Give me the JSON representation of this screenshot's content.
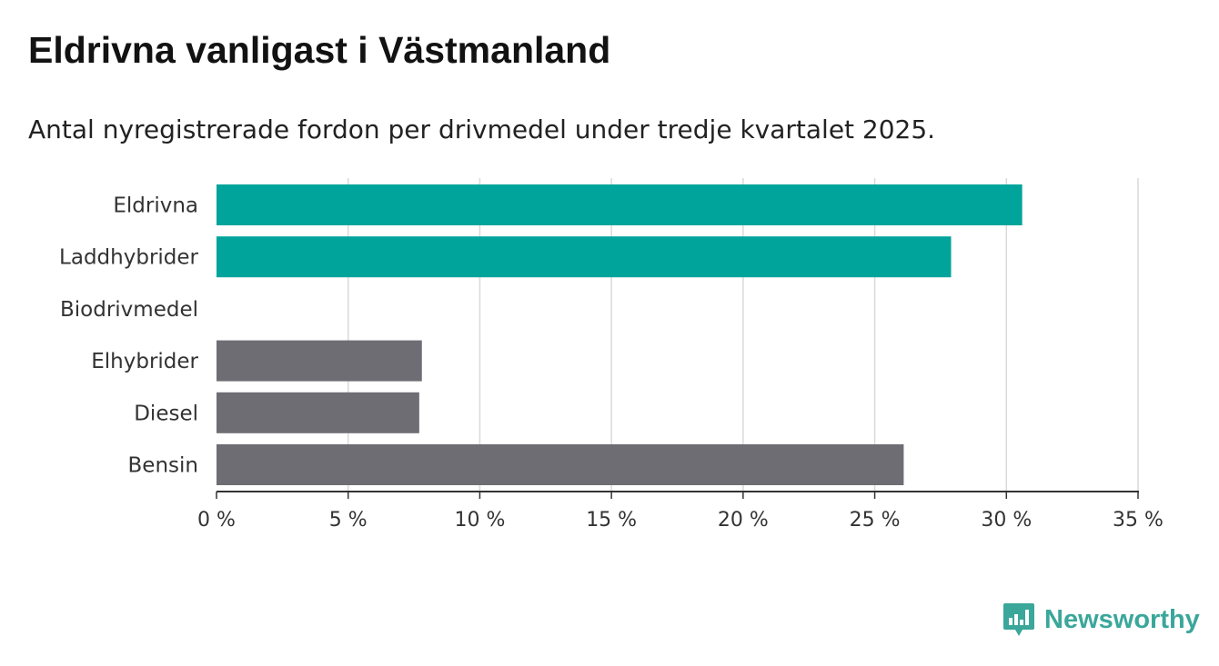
{
  "title": "Eldrivna vanligast i Västmanland",
  "subtitle": "Antal nyregistrerade fordon per drivmedel under tredje kvartalet 2025.",
  "brand": "Newsworthy",
  "colors": {
    "highlight": "#00a49a",
    "default": "#6e6d73",
    "grid": "#d9d9d9",
    "axis": "#333333",
    "brand": "#3aa79a"
  },
  "chart_data": {
    "type": "bar",
    "orientation": "horizontal",
    "categories": [
      "Eldrivna",
      "Laddhybrider",
      "Biodrivmedel",
      "Elhybrider",
      "Diesel",
      "Bensin"
    ],
    "values": [
      30.6,
      27.9,
      0,
      7.8,
      7.7,
      26.1
    ],
    "highlight": [
      true,
      true,
      false,
      false,
      false,
      false
    ],
    "xlim": [
      0,
      35
    ],
    "ticks": [
      0,
      5,
      10,
      15,
      20,
      25,
      30,
      35
    ],
    "tick_labels": [
      "0 %",
      "5 %",
      "10 %",
      "15 %",
      "20 %",
      "25 %",
      "30 %",
      "35 %"
    ],
    "title": "Eldrivna vanligast i Västmanland",
    "xlabel": "",
    "ylabel": "",
    "grid": true
  }
}
